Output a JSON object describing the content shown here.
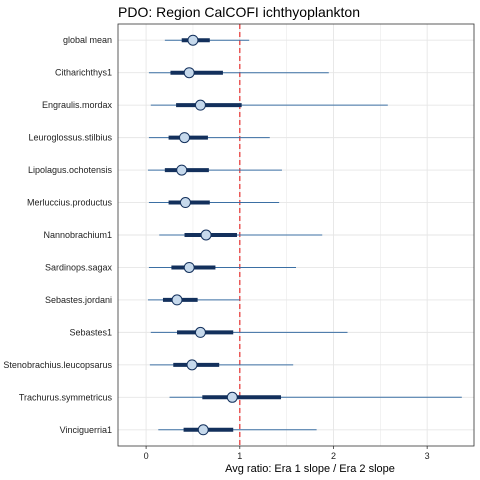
{
  "chart_data": {
    "type": "forest",
    "title": "PDO: Region CalCOFI ichthyoplankton",
    "xlabel": "Avg ratio: Era 1 slope / Era 2 slope",
    "xlim": [
      -0.3,
      3.5
    ],
    "xticks": [
      0,
      1,
      2,
      3
    ],
    "reference_line": 1,
    "grid": true,
    "series": [
      {
        "name": "global mean",
        "mid": 0.5,
        "inner": [
          0.38,
          0.68
        ],
        "outer": [
          0.2,
          1.1
        ]
      },
      {
        "name": "Citharichthys1",
        "mid": 0.46,
        "inner": [
          0.26,
          0.82
        ],
        "outer": [
          0.03,
          1.95
        ]
      },
      {
        "name": "Engraulis.mordax",
        "mid": 0.58,
        "inner": [
          0.32,
          1.02
        ],
        "outer": [
          0.05,
          2.58
        ]
      },
      {
        "name": "Leuroglossus.stilbius",
        "mid": 0.41,
        "inner": [
          0.24,
          0.66
        ],
        "outer": [
          0.03,
          1.32
        ]
      },
      {
        "name": "Lipolagus.ochotensis",
        "mid": 0.38,
        "inner": [
          0.2,
          0.67
        ],
        "outer": [
          0.02,
          1.45
        ]
      },
      {
        "name": "Merluccius.productus",
        "mid": 0.42,
        "inner": [
          0.24,
          0.68
        ],
        "outer": [
          0.03,
          1.42
        ]
      },
      {
        "name": "Nannobrachium1",
        "mid": 0.64,
        "inner": [
          0.41,
          0.97
        ],
        "outer": [
          0.14,
          1.88
        ]
      },
      {
        "name": "Sardinops.sagax",
        "mid": 0.46,
        "inner": [
          0.27,
          0.74
        ],
        "outer": [
          0.03,
          1.6
        ]
      },
      {
        "name": "Sebastes.jordani",
        "mid": 0.33,
        "inner": [
          0.18,
          0.55
        ],
        "outer": [
          0.02,
          1.0
        ]
      },
      {
        "name": "Sebastes1",
        "mid": 0.58,
        "inner": [
          0.33,
          0.93
        ],
        "outer": [
          0.05,
          2.15
        ]
      },
      {
        "name": "Stenobrachius.leucopsarus",
        "mid": 0.49,
        "inner": [
          0.29,
          0.78
        ],
        "outer": [
          0.04,
          1.57
        ]
      },
      {
        "name": "Trachurus.symmetricus",
        "mid": 0.92,
        "inner": [
          0.6,
          1.44
        ],
        "outer": [
          0.25,
          3.37
        ]
      },
      {
        "name": "Vinciguerria1",
        "mid": 0.61,
        "inner": [
          0.4,
          0.93
        ],
        "outer": [
          0.13,
          1.82
        ]
      }
    ],
    "colors": {
      "outer_line": "#3b6fa3",
      "inner_line": "#13305c",
      "point_fill": "#c6d9ec",
      "point_stroke": "#13305c",
      "reference": "#e8403f",
      "grid": "#e6e6e6",
      "panel_border": "#333333"
    }
  }
}
